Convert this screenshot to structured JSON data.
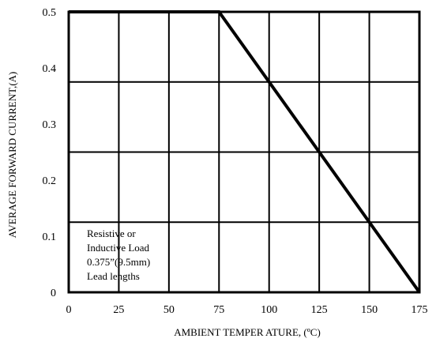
{
  "chart_data": {
    "type": "line",
    "xlabel": "AMBIENT TEMPER ATURE, (ºC)",
    "ylabel": "AVERAGE FORWARD CURRENT,(A)",
    "xlim": [
      0,
      175
    ],
    "ylim": [
      0,
      0.5
    ],
    "x_ticks": [
      0,
      25,
      50,
      75,
      100,
      125,
      150,
      175
    ],
    "x_tick_labels": [
      "0",
      "25",
      "50",
      "75",
      "100",
      "125",
      "150",
      "175"
    ],
    "y_tick_labels": [
      "0",
      "0.1",
      "0.2",
      "0.3",
      "0.4",
      "0.5"
    ],
    "y_ticks": [
      0,
      0.1,
      0.2,
      0.3,
      0.4,
      0.5
    ],
    "grid": true,
    "x_grid": [
      0,
      25,
      50,
      75,
      100,
      125,
      150,
      175
    ],
    "y_grid": [
      0,
      0.125,
      0.25,
      0.375,
      0.5
    ],
    "series": [
      {
        "x": [
          0,
          75,
          175
        ],
        "y": [
          0.5,
          0.5,
          0
        ]
      }
    ],
    "annotation": [
      "Resistive or",
      "Inductive Load",
      "0.375”(9.5mm)",
      "Lead lengths"
    ]
  }
}
